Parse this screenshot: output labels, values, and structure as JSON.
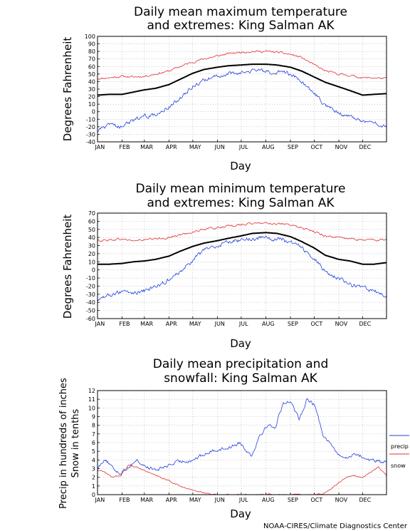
{
  "credit": "NOAA-CIRES/Climate Diagnostics Center",
  "chart_data": [
    {
      "type": "line",
      "title": [
        "Daily mean maximum temperature",
        "and extremes: King Salman AK"
      ],
      "xlabel": "Day",
      "ylabel": [
        "Degrees Fahrenheit"
      ],
      "ylim": [
        -40,
        100
      ],
      "yticks": [
        "100",
        "90",
        "80",
        "70",
        "60",
        "50",
        "40",
        "30",
        "20",
        "10",
        "0",
        "-10",
        "-20",
        "-30",
        "-40"
      ],
      "months": [
        "JAN",
        "FEB",
        "MAR",
        "APR",
        "MAY",
        "JUN",
        "JUL",
        "AUG",
        "SEP",
        "OCT",
        "NOV",
        "DEC"
      ],
      "grid": true,
      "x": [
        1,
        15,
        32,
        46,
        60,
        74,
        91,
        105,
        121,
        135,
        152,
        166,
        182,
        196,
        213,
        227,
        244,
        258,
        274,
        288,
        305,
        319,
        335,
        349,
        365
      ],
      "series": [
        {
          "role": "record_high",
          "color": "#e03030",
          "values": [
            44,
            45,
            47,
            46,
            47,
            50,
            54,
            60,
            66,
            70,
            74,
            77,
            79,
            80,
            80,
            79,
            76,
            72,
            62,
            54,
            50,
            48,
            45,
            45,
            44
          ]
        },
        {
          "role": "mean",
          "color": "#000000",
          "values": [
            22,
            23,
            23,
            26,
            29,
            31,
            36,
            43,
            51,
            56,
            59,
            61,
            62,
            63,
            63,
            62,
            59,
            54,
            46,
            39,
            33,
            28,
            22,
            23,
            24
          ]
        },
        {
          "role": "record_low",
          "color": "#2040e0",
          "values": [
            -25,
            -18,
            -20,
            -12,
            -6,
            -4,
            6,
            18,
            34,
            42,
            47,
            50,
            52,
            54,
            54,
            53,
            50,
            40,
            25,
            8,
            -2,
            -6,
            -12,
            -15,
            -20
          ]
        }
      ]
    },
    {
      "type": "line",
      "title": [
        "Daily mean minimum temperature",
        "and extremes: King Salman AK"
      ],
      "xlabel": "Day",
      "ylabel": [
        "Degrees Fahrenheit"
      ],
      "ylim": [
        -60,
        70
      ],
      "yticks": [
        "70",
        "60",
        "50",
        "40",
        "30",
        "20",
        "10",
        "0",
        "-10",
        "-20",
        "-30",
        "-40",
        "-50",
        "-60"
      ],
      "months": [
        "JAN",
        "FEB",
        "MAR",
        "APR",
        "MAY",
        "JUN",
        "JUL",
        "AUG",
        "SEP",
        "OCT",
        "NOV",
        "DEC"
      ],
      "grid": true,
      "x": [
        1,
        15,
        32,
        46,
        60,
        74,
        91,
        105,
        121,
        135,
        152,
        166,
        182,
        196,
        213,
        227,
        244,
        258,
        274,
        288,
        305,
        319,
        335,
        349,
        365
      ],
      "series": [
        {
          "role": "record_high",
          "color": "#e03030",
          "values": [
            36,
            37,
            38,
            36,
            37,
            38,
            40,
            43,
            47,
            50,
            52,
            54,
            56,
            57,
            58,
            57,
            55,
            52,
            47,
            42,
            40,
            38,
            37,
            37,
            37
          ]
        },
        {
          "role": "mean",
          "color": "#000000",
          "values": [
            7,
            7,
            8,
            10,
            11,
            13,
            17,
            23,
            29,
            33,
            36,
            39,
            42,
            45,
            46,
            45,
            41,
            35,
            27,
            18,
            13,
            11,
            7,
            7,
            9
          ]
        },
        {
          "role": "record_low",
          "color": "#2040e0",
          "values": [
            -40,
            -30,
            -28,
            -28,
            -26,
            -22,
            -12,
            -2,
            12,
            24,
            30,
            34,
            37,
            38,
            40,
            38,
            34,
            27,
            14,
            -2,
            -10,
            -18,
            -22,
            -26,
            -32
          ]
        }
      ]
    },
    {
      "type": "line",
      "title": [
        "Daily mean precipitation and",
        "snowfall: King Salman AK"
      ],
      "xlabel": "Day",
      "ylabel": [
        "Precip in hundreds of inches",
        "Snow in tenths"
      ],
      "ylim": [
        0,
        12
      ],
      "yticks": [
        "12",
        "11",
        "10",
        "9",
        "8",
        "7",
        "6",
        "5",
        "4",
        "3",
        "2",
        "1",
        "0"
      ],
      "months": [
        "JAN",
        "FEB",
        "MAR",
        "APR",
        "MAY",
        "JUN",
        "JUL",
        "AUG",
        "SEP",
        "OCT",
        "NOV",
        "DEC"
      ],
      "grid": true,
      "legend": "right",
      "x": [
        1,
        10,
        20,
        30,
        40,
        50,
        60,
        75,
        90,
        105,
        120,
        135,
        150,
        165,
        180,
        195,
        205,
        215,
        225,
        235,
        245,
        255,
        265,
        275,
        285,
        295,
        305,
        315,
        325,
        335,
        345,
        355,
        365
      ],
      "series": [
        {
          "name": "precip",
          "color": "#2040e0",
          "values": [
            3.0,
            4.2,
            3.0,
            2.5,
            3.2,
            4.0,
            3.3,
            2.8,
            3.4,
            3.8,
            4.0,
            4.6,
            5.2,
            5.4,
            6.0,
            4.5,
            6.8,
            8.0,
            7.8,
            10.6,
            10.8,
            8.5,
            11.2,
            10.2,
            7.0,
            5.8,
            4.5,
            4.2,
            4.8,
            4.3,
            4.0,
            3.8,
            3.7
          ]
        },
        {
          "name": "snow",
          "color": "#e03030",
          "values": [
            2.8,
            2.6,
            2.0,
            2.2,
            3.4,
            3.2,
            2.8,
            2.2,
            1.6,
            1.0,
            0.5,
            0.2,
            0.0,
            0.0,
            0.0,
            0.0,
            0.0,
            0.0,
            0.0,
            0.0,
            0.0,
            0.0,
            0.0,
            0.0,
            0.1,
            0.6,
            1.4,
            2.0,
            2.2,
            2.0,
            2.6,
            3.2,
            2.2
          ]
        }
      ]
    }
  ]
}
